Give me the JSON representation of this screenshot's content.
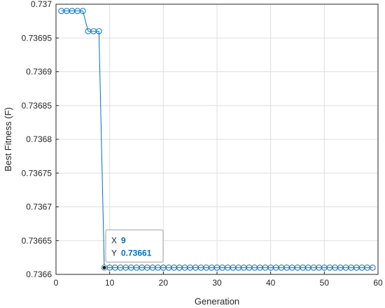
{
  "chart_data": {
    "type": "line",
    "xlabel": "Generation",
    "ylabel": "Best Fitness (F)",
    "xlim": [
      0,
      60
    ],
    "ylim": [
      0.7366,
      0.737
    ],
    "grid": true,
    "x_ticks": [
      0,
      10,
      20,
      30,
      40,
      50,
      60
    ],
    "x_tick_labels": [
      "0",
      "10",
      "20",
      "30",
      "40",
      "50",
      "60"
    ],
    "y_ticks": [
      0.7366,
      0.73665,
      0.7367,
      0.73675,
      0.7368,
      0.73685,
      0.7369,
      0.73695,
      0.737
    ],
    "y_tick_labels": [
      "0.7366",
      "0.73665",
      "0.7367",
      "0.73675",
      "0.7368",
      "0.73685",
      "0.7369",
      "0.73695",
      "0.737"
    ],
    "series": [
      {
        "color": "#0072BD",
        "marker": "circle",
        "x": [
          1,
          2,
          3,
          4,
          5,
          6,
          7,
          8,
          9,
          10,
          11,
          12,
          13,
          14,
          15,
          16,
          17,
          18,
          19,
          20,
          21,
          22,
          23,
          24,
          25,
          26,
          27,
          28,
          29,
          30,
          31,
          32,
          33,
          34,
          35,
          36,
          37,
          38,
          39,
          40,
          41,
          42,
          43,
          44,
          45,
          46,
          47,
          48,
          49,
          50,
          51,
          52,
          53,
          54,
          55,
          56,
          57,
          58,
          59
        ],
        "y": [
          0.73699,
          0.73699,
          0.73699,
          0.73699,
          0.73699,
          0.73696,
          0.73696,
          0.73696,
          0.73661,
          0.73661,
          0.73661,
          0.73661,
          0.73661,
          0.73661,
          0.73661,
          0.73661,
          0.73661,
          0.73661,
          0.73661,
          0.73661,
          0.73661,
          0.73661,
          0.73661,
          0.73661,
          0.73661,
          0.73661,
          0.73661,
          0.73661,
          0.73661,
          0.73661,
          0.73661,
          0.73661,
          0.73661,
          0.73661,
          0.73661,
          0.73661,
          0.73661,
          0.73661,
          0.73661,
          0.73661,
          0.73661,
          0.73661,
          0.73661,
          0.73661,
          0.73661,
          0.73661,
          0.73661,
          0.73661,
          0.73661,
          0.73661,
          0.73661,
          0.73661,
          0.73661,
          0.73661,
          0.73661,
          0.73661,
          0.73661,
          0.73661,
          0.73661
        ]
      }
    ],
    "datatip": {
      "x_label": "X",
      "x_value": "9",
      "y_label": "Y",
      "y_value": "0.73661",
      "point_x": 9,
      "point_y": 0.73661,
      "value_color": "#0072BD"
    }
  }
}
